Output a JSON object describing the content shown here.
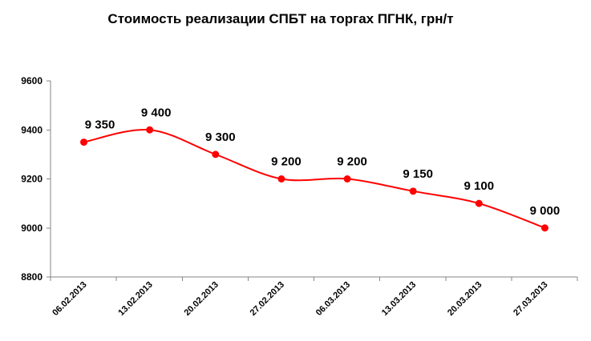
{
  "chart_data": {
    "type": "line",
    "title": "Стоимость реализации СПБТ на торгах ПГНК, грн/т",
    "xlabel": "",
    "ylabel": "",
    "categories": [
      "06.02.2013",
      "13.02.2013",
      "20.02.2013",
      "27.02.2013",
      "06.03.2013",
      "13.03.2013",
      "20.03.2013",
      "27.03.2013"
    ],
    "series": [
      {
        "values": [
          9350,
          9400,
          9300,
          9200,
          9200,
          9150,
          9100,
          9000
        ],
        "data_labels": [
          "9 350",
          "9 400",
          "9 300",
          "9 200",
          "9 200",
          "9 150",
          "9 100",
          "9 000"
        ],
        "color": "#ff0000"
      }
    ],
    "ylim": [
      8800,
      9600
    ],
    "yticks": [
      "8800",
      "9000",
      "9200",
      "9400",
      "9600"
    ],
    "grid": false,
    "smooth": true
  }
}
